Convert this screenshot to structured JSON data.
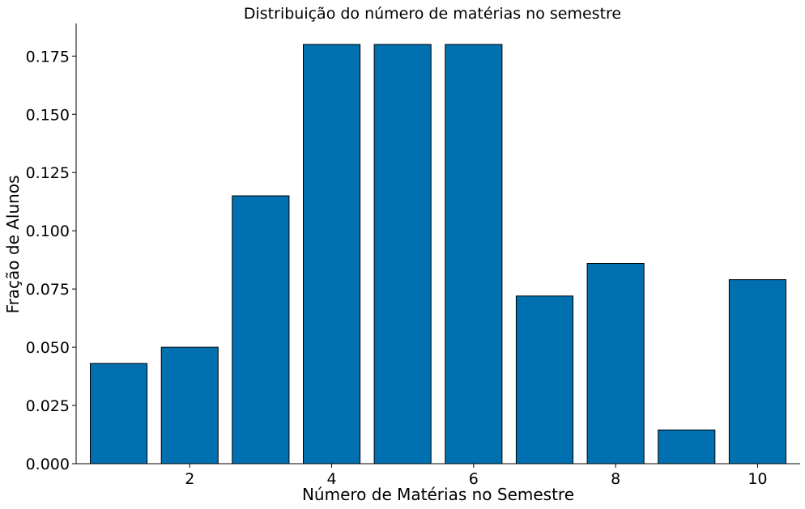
{
  "chart_data": {
    "type": "bar",
    "title": "Distribuição do número de matérias no semestre",
    "xlabel": "Número de Matérias no Semestre",
    "ylabel": "Fração de Alunos",
    "x": [
      1,
      2,
      3,
      4,
      5,
      6,
      7,
      8,
      9,
      10
    ],
    "values": [
      0.043,
      0.05,
      0.115,
      0.18,
      0.18,
      0.18,
      0.072,
      0.086,
      0.0145,
      0.079
    ],
    "xlim": [
      0.4,
      10.6
    ],
    "ylim": [
      0,
      0.189
    ],
    "xticks": [
      2,
      4,
      6,
      8,
      10
    ],
    "xtick_labels": [
      "2",
      "4",
      "6",
      "8",
      "10"
    ],
    "yticks": [
      0,
      0.025,
      0.05,
      0.075,
      0.1,
      0.125,
      0.15,
      0.175
    ],
    "ytick_labels": [
      "0.000",
      "0.025",
      "0.050",
      "0.075",
      "0.100",
      "0.125",
      "0.150",
      "0.175"
    ],
    "bar_color": "#0070b0",
    "edge_color": "#000000",
    "grid": false,
    "legend": "none"
  }
}
